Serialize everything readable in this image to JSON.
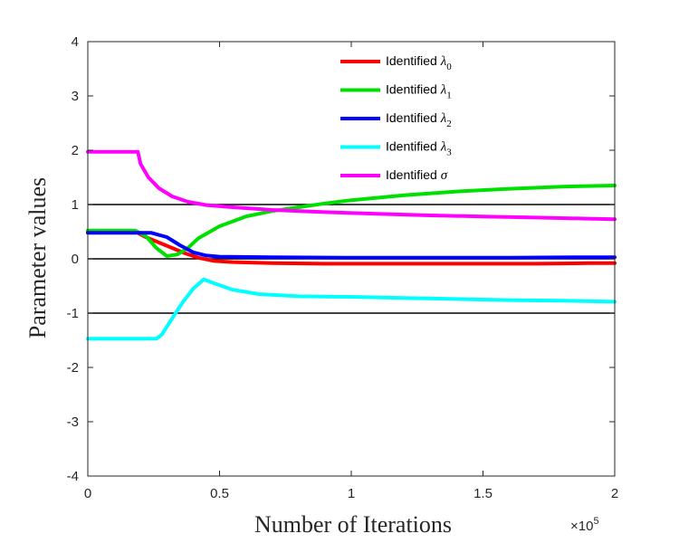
{
  "chart_data": {
    "type": "line",
    "title": "",
    "xlabel": "Number of Iterations",
    "ylabel": "Parameter values",
    "x_multiplier": {
      "base": "×10",
      "exp": "5"
    },
    "xlim": [
      0,
      2
    ],
    "ylim": [
      -4,
      4
    ],
    "xticks": [
      0,
      0.5,
      1,
      1.5,
      2
    ],
    "xtick_labels": [
      "0",
      "0.5",
      "1",
      "1.5",
      "2"
    ],
    "yticks": [
      -4,
      -3,
      -2,
      -1,
      0,
      1,
      2,
      3,
      4
    ],
    "ytick_labels": [
      "-4",
      "-3",
      "-2",
      "-1",
      "0",
      "1",
      "2",
      "3",
      "4"
    ],
    "reference_lines": [
      1,
      0,
      -1
    ],
    "reference_color": "#000000",
    "legend_position": "top-right",
    "series": [
      {
        "name": "lambda_0",
        "legend_text": "Identified ",
        "symbol": "λ",
        "subscript": "0",
        "color": "#ff0000",
        "x": [
          0,
          0.18,
          0.22,
          0.27,
          0.32,
          0.37,
          0.42,
          0.48,
          0.55,
          0.7,
          0.9,
          1.1,
          1.3,
          1.5,
          1.7,
          1.9,
          2.0
        ],
        "y": [
          0.5,
          0.5,
          0.4,
          0.3,
          0.2,
          0.1,
          0.02,
          -0.04,
          -0.06,
          -0.08,
          -0.09,
          -0.09,
          -0.09,
          -0.09,
          -0.09,
          -0.08,
          -0.08
        ]
      },
      {
        "name": "lambda_1",
        "legend_text": "Identified ",
        "symbol": "λ",
        "subscript": "1",
        "color": "#00e000",
        "x": [
          0,
          0.18,
          0.22,
          0.26,
          0.3,
          0.34,
          0.38,
          0.42,
          0.5,
          0.6,
          0.7,
          0.8,
          0.9,
          1.0,
          1.2,
          1.4,
          1.6,
          1.8,
          2.0
        ],
        "y": [
          0.52,
          0.52,
          0.42,
          0.2,
          0.05,
          0.08,
          0.2,
          0.38,
          0.6,
          0.78,
          0.88,
          0.95,
          1.02,
          1.08,
          1.17,
          1.24,
          1.29,
          1.33,
          1.35
        ]
      },
      {
        "name": "lambda_2",
        "legend_text": "Identified ",
        "symbol": "λ",
        "subscript": "2",
        "color": "#0000ff",
        "x": [
          0,
          0.18,
          0.24,
          0.3,
          0.35,
          0.4,
          0.45,
          0.5,
          0.7,
          1.0,
          1.3,
          1.6,
          1.9,
          2.0
        ],
        "y": [
          0.48,
          0.48,
          0.48,
          0.4,
          0.25,
          0.12,
          0.06,
          0.04,
          0.03,
          0.02,
          0.02,
          0.02,
          0.03,
          0.03
        ]
      },
      {
        "name": "lambda_3",
        "legend_text": "Identified ",
        "symbol": "λ",
        "subscript": "3",
        "color": "#00ffff",
        "x": [
          0,
          0.26,
          0.28,
          0.32,
          0.36,
          0.4,
          0.44,
          0.48,
          0.55,
          0.65,
          0.8,
          1.0,
          1.2,
          1.4,
          1.6,
          1.8,
          2.0
        ],
        "y": [
          -1.47,
          -1.47,
          -1.4,
          -1.1,
          -0.8,
          -0.55,
          -0.38,
          -0.45,
          -0.57,
          -0.65,
          -0.69,
          -0.7,
          -0.72,
          -0.74,
          -0.76,
          -0.77,
          -0.79
        ]
      },
      {
        "name": "sigma",
        "legend_text": "Identified ",
        "symbol": "σ",
        "subscript": "",
        "color": "#ff00ff",
        "x": [
          0,
          0.19,
          0.2,
          0.23,
          0.27,
          0.32,
          0.38,
          0.45,
          0.55,
          0.7,
          0.9,
          1.1,
          1.3,
          1.5,
          1.7,
          1.9,
          2.0
        ],
        "y": [
          1.97,
          1.97,
          1.75,
          1.5,
          1.3,
          1.15,
          1.05,
          0.99,
          0.95,
          0.9,
          0.86,
          0.83,
          0.8,
          0.78,
          0.76,
          0.74,
          0.73
        ]
      }
    ]
  }
}
